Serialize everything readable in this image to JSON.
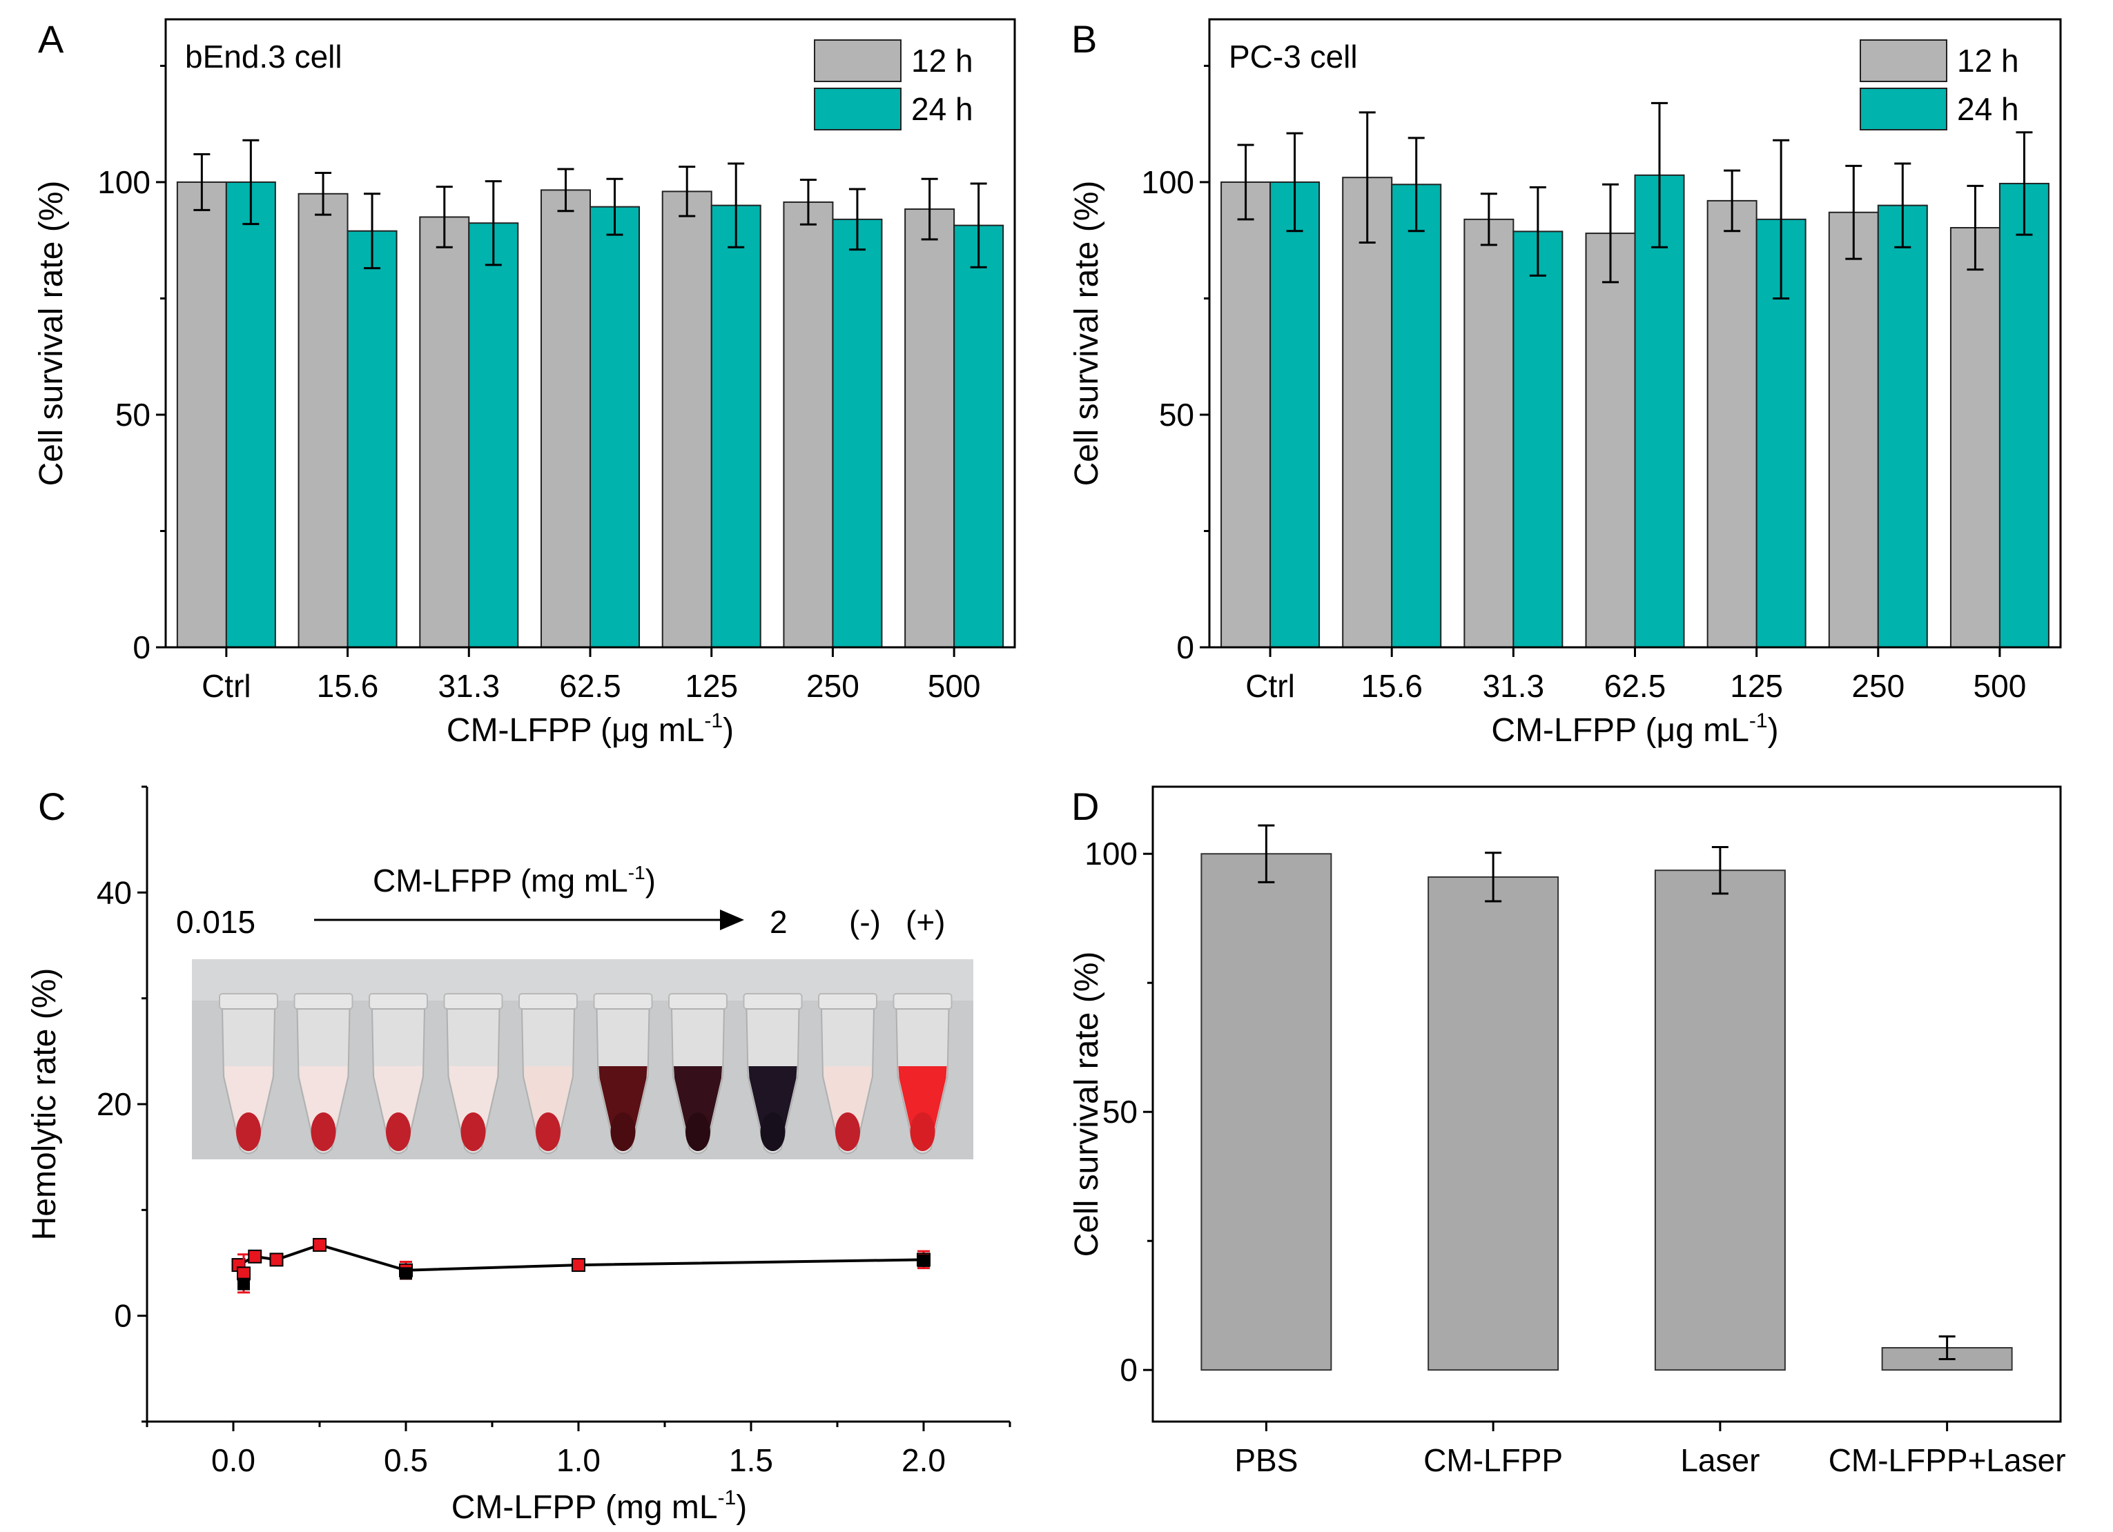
{
  "colors": {
    "h12": "#b4b4b4",
    "h24": "#00b3ad",
    "barD": "#a9a9a9",
    "marker_black": "#000000",
    "marker_red": "#e8141e"
  },
  "chart_data": [
    {
      "id": "A",
      "type": "bar",
      "panel_label": "A",
      "title": "bEnd.3 cell",
      "xlabel": "CM-LFPP (μg mL",
      "xlabel_sup": "-1",
      "xlabel_tail": ")",
      "ylabel": "Cell survival rate (%)",
      "ylim": [
        0,
        135
      ],
      "yticks": [
        0,
        50,
        100
      ],
      "ytick_labels": [
        "0",
        "50",
        "100"
      ],
      "categories": [
        "Ctrl",
        "15.6",
        "31.3",
        "62.5",
        "125",
        "250",
        "500"
      ],
      "legend_position": "top-right",
      "series": [
        {
          "name": "12 h",
          "values": [
            100,
            97.5,
            92.5,
            98.3,
            98.0,
            95.7,
            94.2
          ],
          "errors": [
            6.0,
            4.5,
            6.5,
            4.5,
            5.3,
            4.8,
            6.5
          ]
        },
        {
          "name": "24 h",
          "values": [
            100,
            89.5,
            91.2,
            94.7,
            95.0,
            92.0,
            90.7
          ],
          "errors": [
            9.0,
            8.0,
            9.0,
            6.0,
            9.0,
            6.5,
            9.0
          ]
        }
      ]
    },
    {
      "id": "B",
      "type": "bar",
      "panel_label": "B",
      "title": "PC-3 cell",
      "xlabel": "CM-LFPP (μg mL",
      "xlabel_sup": "-1",
      "xlabel_tail": ")",
      "ylabel": "Cell survival rate (%)",
      "ylim": [
        0,
        135
      ],
      "yticks": [
        0,
        50,
        100
      ],
      "ytick_labels": [
        "0",
        "50",
        "100"
      ],
      "categories": [
        "Ctrl",
        "15.6",
        "31.3",
        "62.5",
        "125",
        "250",
        "500"
      ],
      "legend_position": "top-right",
      "series": [
        {
          "name": "12 h",
          "values": [
            100,
            101,
            92.0,
            89.0,
            96.0,
            93.5,
            90.2
          ],
          "errors": [
            8.0,
            14.0,
            5.5,
            10.5,
            6.5,
            10.0,
            9.0
          ]
        },
        {
          "name": "24 h",
          "values": [
            100,
            99.5,
            89.4,
            101.5,
            92.0,
            95.0,
            99.7
          ],
          "errors": [
            10.5,
            10.0,
            9.5,
            15.5,
            17.0,
            9.0,
            11.0
          ]
        }
      ]
    },
    {
      "id": "C",
      "type": "line",
      "panel_label": "C",
      "xlabel": "CM-LFPP (mg mL",
      "xlabel_sup": "-1",
      "xlabel_tail": ")",
      "ylabel": "Hemolytic rate (%)",
      "xlim": [
        -0.25,
        2.25
      ],
      "ylim": [
        -10,
        50
      ],
      "xticks": [
        0.0,
        0.5,
        1.0,
        1.5,
        2.0
      ],
      "xtick_labels": [
        "0.0",
        "0.5",
        "1.0",
        "1.5",
        "2.0"
      ],
      "yticks": [
        0,
        20,
        40
      ],
      "ytick_labels": [
        "0",
        "20",
        "40"
      ],
      "line_x": [
        0.015,
        0.0625,
        0.125,
        0.25,
        0.5,
        1.0,
        2.0
      ],
      "line_y": [
        4.8,
        5.6,
        5.3,
        6.7,
        4.3,
        4.8,
        5.3
      ],
      "red_x": [
        0.015,
        0.03,
        0.0625,
        0.125,
        0.25,
        0.5,
        1.0,
        2.0
      ],
      "red_y": [
        4.8,
        4.0,
        5.6,
        5.3,
        6.7,
        4.3,
        4.8,
        5.3
      ],
      "red_err": [
        0.5,
        1.8,
        0.5,
        0.4,
        0.5,
        0.8,
        0.5,
        0.8
      ],
      "black_x": [
        0.03,
        0.5,
        2.0
      ],
      "black_y": [
        3.0,
        4.0,
        5.2
      ],
      "inset": {
        "concentration_label": "CM-LFPP (mg mL",
        "concentration_sup": "-1",
        "concentration_tail": ")",
        "start_label": "0.015",
        "end_label": "2",
        "negative_label": "(-)",
        "positive_label": "(+)",
        "tubes": [
          {
            "liquid": "#f3e2df",
            "pellet": "#c0202a"
          },
          {
            "liquid": "#f3e2df",
            "pellet": "#c0202a"
          },
          {
            "liquid": "#f3e3e0",
            "pellet": "#c0202a"
          },
          {
            "liquid": "#f3e3e0",
            "pellet": "#c0202a"
          },
          {
            "liquid": "#f1dcd8",
            "pellet": "#c0202a"
          },
          {
            "liquid": "#5a1014",
            "pellet": "#4a0c10"
          },
          {
            "liquid": "#35101a",
            "pellet": "#2a0a12"
          },
          {
            "liquid": "#1e1424",
            "pellet": "#170f1c"
          },
          {
            "liquid": "#f2ddd9",
            "pellet": "#c0202a"
          },
          {
            "liquid": "#ef2328",
            "pellet": "#d71e24"
          }
        ]
      }
    },
    {
      "id": "D",
      "type": "bar",
      "panel_label": "D",
      "ylabel": "Cell survival rate (%)",
      "ylim": [
        -10,
        113
      ],
      "yticks": [
        0,
        50,
        100
      ],
      "ytick_labels": [
        "0",
        "50",
        "100"
      ],
      "categories": [
        "PBS",
        "CM-LFPP",
        "Laser",
        "CM-LFPP+Laser"
      ],
      "values": [
        100,
        95.5,
        96.8,
        4.3
      ],
      "errors": [
        5.5,
        4.7,
        4.5,
        2.2
      ]
    }
  ]
}
